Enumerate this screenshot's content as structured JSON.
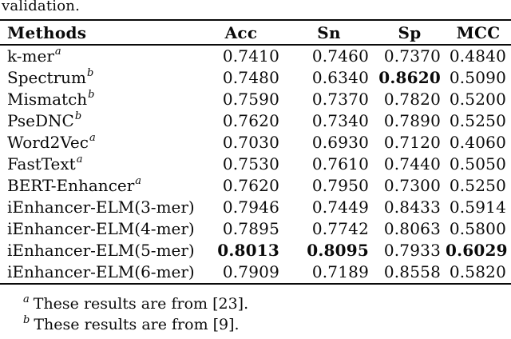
{
  "caption_tail": "validation.",
  "table": {
    "headers": [
      "Methods",
      "Acc",
      "Sn",
      "Sp",
      "MCC"
    ],
    "rows": [
      {
        "method": "k-mer",
        "sup": "a",
        "values": [
          "0.7410",
          "0.7460",
          "0.7370",
          "0.4840"
        ],
        "bold": []
      },
      {
        "method": "Spectrum",
        "sup": "b",
        "values": [
          "0.7480",
          "0.6340",
          "0.8620",
          "0.5090"
        ],
        "bold": [
          2
        ]
      },
      {
        "method": "Mismatch",
        "sup": "b",
        "values": [
          "0.7590",
          "0.7370",
          "0.7820",
          "0.5200"
        ],
        "bold": []
      },
      {
        "method": "PseDNC",
        "sup": "b",
        "values": [
          "0.7620",
          "0.7340",
          "0.7890",
          "0.5250"
        ],
        "bold": []
      },
      {
        "method": "Word2Vec",
        "sup": "a",
        "values": [
          "0.7030",
          "0.6930",
          "0.7120",
          "0.4060"
        ],
        "bold": []
      },
      {
        "method": "FastText",
        "sup": "a",
        "values": [
          "0.7530",
          "0.7610",
          "0.7440",
          "0.5050"
        ],
        "bold": []
      },
      {
        "method": "BERT-Enhancer",
        "sup": "a",
        "values": [
          "0.7620",
          "0.7950",
          "0.7300",
          "0.5250"
        ],
        "bold": []
      },
      {
        "method": "iEnhancer-ELM(3-mer)",
        "sup": null,
        "values": [
          "0.7946",
          "0.7449",
          "0.8433",
          "0.5914"
        ],
        "bold": []
      },
      {
        "method": "iEnhancer-ELM(4-mer)",
        "sup": null,
        "values": [
          "0.7895",
          "0.7742",
          "0.8063",
          "0.5800"
        ],
        "bold": []
      },
      {
        "method": "iEnhancer-ELM(5-mer)",
        "sup": null,
        "values": [
          "0.8013",
          "0.8095",
          "0.7933",
          "0.6029"
        ],
        "bold": [
          0,
          1,
          3
        ]
      },
      {
        "method": "iEnhancer-ELM(6-mer)",
        "sup": null,
        "values": [
          "0.7909",
          "0.7189",
          "0.8558",
          "0.5820"
        ],
        "bold": []
      }
    ]
  },
  "footnotes": [
    {
      "marker": "a",
      "text": "These results are from [23]."
    },
    {
      "marker": "b",
      "text": "These results are from [9]."
    }
  ],
  "colors": {
    "text": "#0a0a0a",
    "background": "#ffffff",
    "rule": "#0a0a0a"
  }
}
